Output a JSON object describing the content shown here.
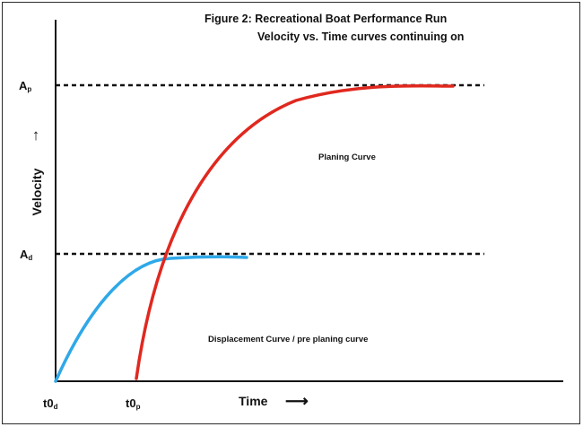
{
  "title_line1": "Figure 2: Recreational Boat Performance Run",
  "title_line2": "Velocity vs. Time curves continuing on",
  "x_axis": {
    "label": "Time",
    "arrow": "⟶"
  },
  "y_axis": {
    "label": "Velocity",
    "arrow": "↑"
  },
  "levels": {
    "planing": {
      "main": "A",
      "sub": "p"
    },
    "displacement": {
      "main": "A",
      "sub": "d"
    }
  },
  "x_ticks": {
    "displacement_start": {
      "main": "t0",
      "sub": "d"
    },
    "planing_start": {
      "main": "t0",
      "sub": "p"
    }
  },
  "annotations": {
    "planing_curve": "Planing Curve",
    "displacement_curve": "Displacement Curve / pre planing curve"
  },
  "colors": {
    "planing_curve": "#e0281f",
    "displacement_curve": "#2fa8e8",
    "axes": "#111111"
  }
}
